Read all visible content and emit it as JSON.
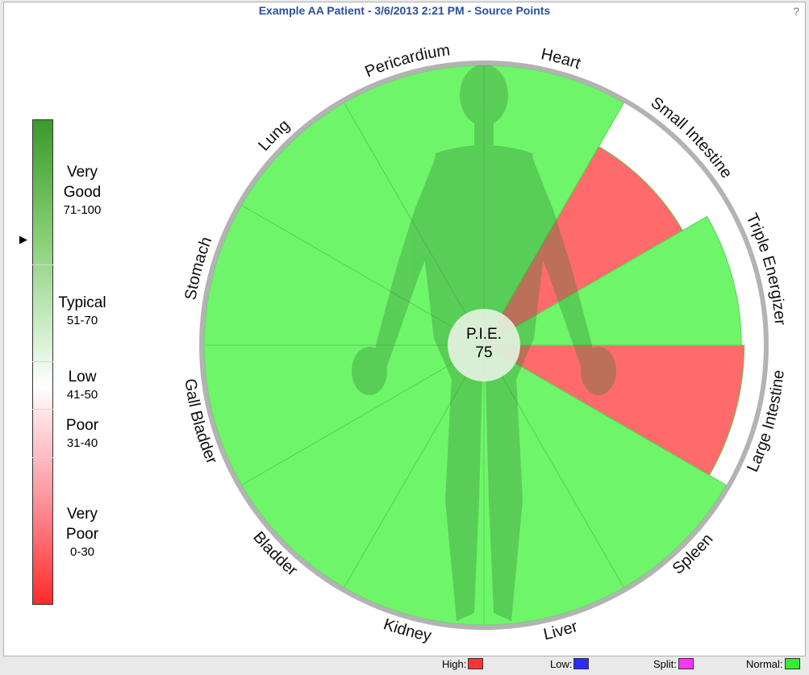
{
  "title": "Example AA Patient - 3/6/2013 2:21 PM - Source Points",
  "help": "?",
  "colors": {
    "high": "#ff6b6b",
    "normal": "#6ff56a",
    "low": "#2b2bff",
    "split": "#ff33ff",
    "ring": "#b3b3b3"
  },
  "scale": {
    "marker": "▶",
    "bands": [
      {
        "name_lines": [
          "Very",
          "Good"
        ],
        "range": "71-100"
      },
      {
        "name_lines": [
          "Typical"
        ],
        "range": "51-70"
      },
      {
        "name_lines": [
          "Low"
        ],
        "range": "41-50"
      },
      {
        "name_lines": [
          "Poor"
        ],
        "range": "31-40"
      },
      {
        "name_lines": [
          "Very",
          "Poor"
        ],
        "range": "0-30"
      }
    ]
  },
  "chart_data": {
    "type": "polar-area",
    "center_label": "P.I.E.",
    "center_value": "75",
    "scale_max": 100,
    "segments": [
      {
        "name": "Heart",
        "status": "normal",
        "relative_extent": 1.0
      },
      {
        "name": "Small Intestine",
        "status": "high",
        "relative_extent": 0.82
      },
      {
        "name": "Triple Energizer",
        "status": "normal",
        "relative_extent": 0.92
      },
      {
        "name": "Large Intestine",
        "status": "high",
        "relative_extent": 0.93
      },
      {
        "name": "Spleen",
        "status": "normal",
        "relative_extent": 1.0
      },
      {
        "name": "Liver",
        "status": "normal",
        "relative_extent": 1.0
      },
      {
        "name": "Kidney",
        "status": "normal",
        "relative_extent": 1.0
      },
      {
        "name": "Bladder",
        "status": "normal",
        "relative_extent": 1.0
      },
      {
        "name": "Gall Bladder",
        "status": "normal",
        "relative_extent": 1.0
      },
      {
        "name": "Stomach",
        "status": "normal",
        "relative_extent": 1.0
      },
      {
        "name": "Lung",
        "status": "normal",
        "relative_extent": 1.0
      },
      {
        "name": "Pericardium",
        "status": "normal",
        "relative_extent": 1.0
      }
    ]
  },
  "legend": {
    "high": "High:",
    "low": "Low:",
    "split": "Split:",
    "normal": "Normal:"
  }
}
